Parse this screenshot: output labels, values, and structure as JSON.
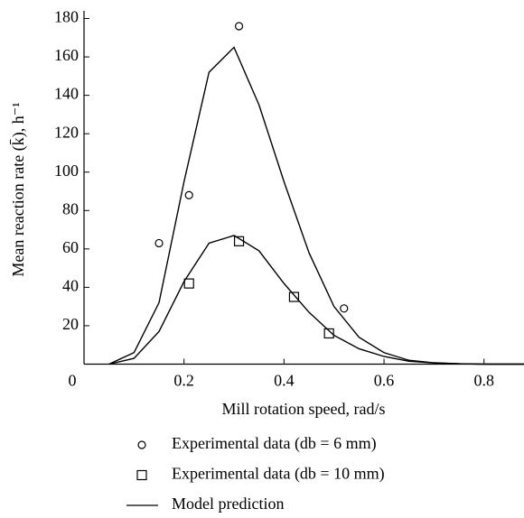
{
  "chart_data": {
    "type": "scatter",
    "xlabel": "Mill rotation speed,  rad/s",
    "ylabel": "Mean reaction rate (k̄),  h⁻¹",
    "xlim": [
      0,
      0.88
    ],
    "ylim": [
      0,
      184
    ],
    "xticks": [
      0,
      0.2,
      0.4,
      0.6,
      0.8
    ],
    "yticks": [
      20,
      40,
      60,
      80,
      100,
      120,
      140,
      160,
      180
    ],
    "series": [
      {
        "name": "Experimental data (db = 6 mm)",
        "style": "circle",
        "color": "#000000",
        "x": [
          0.15,
          0.21,
          0.31,
          0.52
        ],
        "values": [
          63,
          88,
          176,
          29
        ]
      },
      {
        "name": "Experimental data (db = 10 mm)",
        "style": "square",
        "color": "#000000",
        "x": [
          0.21,
          0.31,
          0.42,
          0.49
        ],
        "values": [
          42,
          64,
          35,
          16
        ]
      },
      {
        "name": "Model prediction",
        "style": "line",
        "color": "#000000",
        "x": [
          0.05,
          0.1,
          0.15,
          0.2,
          0.25,
          0.3,
          0.35,
          0.4,
          0.45,
          0.5,
          0.55,
          0.6,
          0.65,
          0.7,
          0.75,
          0.8,
          0.85,
          0.88
        ],
        "values": [
          0,
          6,
          32,
          95,
          152,
          165,
          135,
          95,
          58,
          30,
          14,
          6,
          2,
          0.7,
          0.2,
          0,
          0,
          0
        ]
      },
      {
        "style": "line",
        "color": "#000000",
        "x": [
          0.05,
          0.1,
          0.15,
          0.2,
          0.25,
          0.3,
          0.35,
          0.4,
          0.45,
          0.5,
          0.55,
          0.6,
          0.65,
          0.7,
          0.75,
          0.8,
          0.85,
          0.88
        ],
        "values": [
          0,
          3,
          17,
          43,
          63,
          67,
          59,
          42,
          27,
          15,
          8,
          4,
          1.5,
          0.6,
          0.2,
          0,
          0,
          0
        ]
      }
    ]
  }
}
